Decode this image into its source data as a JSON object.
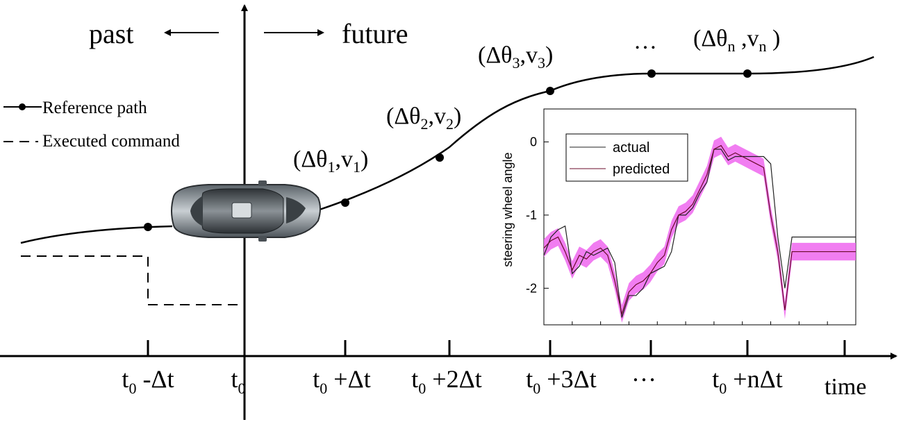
{
  "direction": {
    "past": "past",
    "future": "future"
  },
  "legend": {
    "reference_path": "Reference path",
    "executed_command": "Executed command"
  },
  "time_axis": {
    "label": "time",
    "ticks": [
      {
        "t": "t",
        "s": "0",
        "r": " -Δt"
      },
      {
        "t": "t",
        "s": "0",
        "r": ""
      },
      {
        "t": "t",
        "s": "0",
        "r": " +Δt"
      },
      {
        "t": "t",
        "s": "0",
        "r": " +2Δt"
      },
      {
        "t": "t",
        "s": "0",
        "r": " +3Δt"
      },
      {
        "t": "",
        "s": "",
        "r": "…"
      },
      {
        "t": "t",
        "s": "0",
        "r": " +nΔt"
      }
    ]
  },
  "path_points": [
    {
      "open": "(Δθ",
      "s1": "1",
      "mid": ",v",
      "s2": "1",
      "close": ")"
    },
    {
      "open": "(Δθ",
      "s1": "2",
      "mid": ",v",
      "s2": "2",
      "close": ")"
    },
    {
      "open": "(Δθ",
      "s1": "3",
      "mid": ",v",
      "s2": "3",
      "close": ")"
    },
    {
      "open": "",
      "s1": "",
      "mid": "…",
      "s2": "",
      "close": ""
    },
    {
      "open": "(Δθ",
      "s1": "n",
      "mid": " ,v",
      "s2": "n",
      "close": " )"
    }
  ],
  "chart_data": {
    "type": "line",
    "ylabel": "steering wheel angle",
    "xlabel": "",
    "ylim": [
      -2.5,
      0.45
    ],
    "yticks": [
      0,
      -1,
      -2
    ],
    "ytick_labels": [
      "0",
      "-1",
      "-2"
    ],
    "xlim": [
      0,
      44
    ],
    "legend_position": "top-left",
    "band_color": "#ee66ee",
    "series": [
      {
        "name": "actual",
        "color": "#222222",
        "x": [
          0,
          1,
          2,
          3,
          4,
          5,
          6,
          7,
          8,
          9,
          10,
          11,
          12,
          13,
          14,
          15,
          16,
          17,
          18,
          19,
          20,
          21,
          22,
          23,
          24,
          25,
          26,
          27,
          28,
          29,
          30,
          31,
          32,
          33,
          34,
          35,
          36,
          37,
          38,
          39,
          40,
          41,
          42,
          43,
          44
        ],
        "values": [
          -1.55,
          -1.3,
          -1.2,
          -1.15,
          -1.8,
          -1.7,
          -1.5,
          -1.55,
          -1.5,
          -1.45,
          -1.65,
          -2.4,
          -2.1,
          -2.1,
          -2.0,
          -1.8,
          -1.75,
          -1.7,
          -1.5,
          -1.0,
          -1.0,
          -0.9,
          -0.7,
          -0.55,
          -0.1,
          -0.1,
          -0.25,
          -0.2,
          -0.2,
          -0.2,
          -0.2,
          -0.2,
          -0.3,
          -1.3,
          -2.0,
          -1.3,
          -1.3,
          -1.3,
          -1.3,
          -1.3,
          -1.3,
          -1.3,
          -1.3,
          -1.3,
          -1.3
        ]
      },
      {
        "name": "predicted",
        "color": "#6a0a2a",
        "x": [
          0,
          1,
          2,
          3,
          4,
          5,
          6,
          7,
          8,
          9,
          10,
          11,
          12,
          13,
          14,
          15,
          16,
          17,
          18,
          19,
          20,
          21,
          22,
          23,
          24,
          25,
          26,
          27,
          28,
          29,
          30,
          31,
          32,
          33,
          34,
          35,
          36,
          37,
          38,
          39,
          40,
          41,
          42,
          43,
          44
        ],
        "values": [
          -1.45,
          -1.35,
          -1.3,
          -1.5,
          -1.75,
          -1.55,
          -1.6,
          -1.5,
          -1.45,
          -1.55,
          -1.9,
          -2.35,
          -2.05,
          -1.95,
          -1.9,
          -1.8,
          -1.65,
          -1.55,
          -1.2,
          -1.0,
          -0.95,
          -0.85,
          -0.65,
          -0.45,
          -0.1,
          -0.05,
          -0.2,
          -0.15,
          -0.2,
          -0.25,
          -0.3,
          -0.35,
          -1.0,
          -1.5,
          -2.3,
          -1.5,
          -1.5,
          -1.5,
          -1.5,
          -1.5,
          -1.5,
          -1.5,
          -1.5,
          -1.5,
          -1.5
        ]
      }
    ]
  }
}
